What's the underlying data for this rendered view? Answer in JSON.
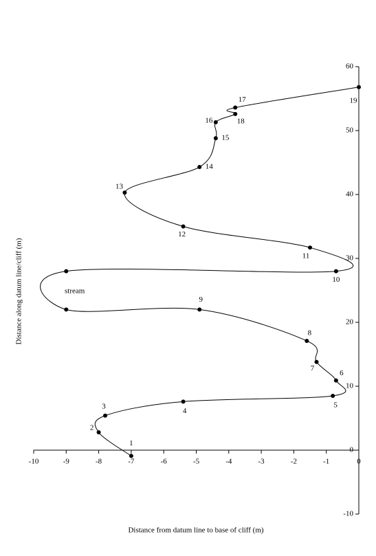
{
  "chart_data": {
    "type": "line",
    "x_label": "Distance from datum line to base of cliff (m)",
    "y_label": "Distance along datum line/cliff (m)",
    "annotation": "stream",
    "x": [
      -7.0,
      -8.0,
      -7.8,
      -5.4,
      -0.8,
      -0.7,
      -1.3,
      -1.6,
      -4.9,
      -9.0,
      -9.0,
      -0.7,
      -1.5,
      -5.4,
      -7.2,
      -4.9,
      -4.4,
      -4.4,
      -3.8,
      -3.8,
      0
    ],
    "series": [
      {
        "color": "#000000",
        "values": [
          -0.9,
          2.8,
          5.4,
          7.6,
          8.5,
          10.9,
          13.8,
          17.1,
          22.0,
          22.0,
          28.0,
          28.0,
          31.7,
          35.0,
          40.3,
          44.3,
          48.8,
          51.3,
          52.6,
          53.6,
          56.8
        ]
      }
    ],
    "point_labels": [
      "1",
      "2",
      "3",
      "4",
      "5",
      "6",
      "7",
      "8",
      "9",
      null,
      null,
      "10",
      "11",
      "12",
      "13",
      "14",
      "15",
      "16",
      "18",
      "17",
      "19"
    ],
    "xlim": [
      -10,
      0
    ],
    "ylim": [
      -10,
      60
    ],
    "xticks": [
      -10,
      -9,
      -8,
      -7,
      -6,
      -5,
      -4,
      -3,
      -2,
      -1,
      0
    ],
    "yticks": [
      -10,
      0,
      10,
      20,
      30,
      40,
      50,
      60
    ]
  }
}
